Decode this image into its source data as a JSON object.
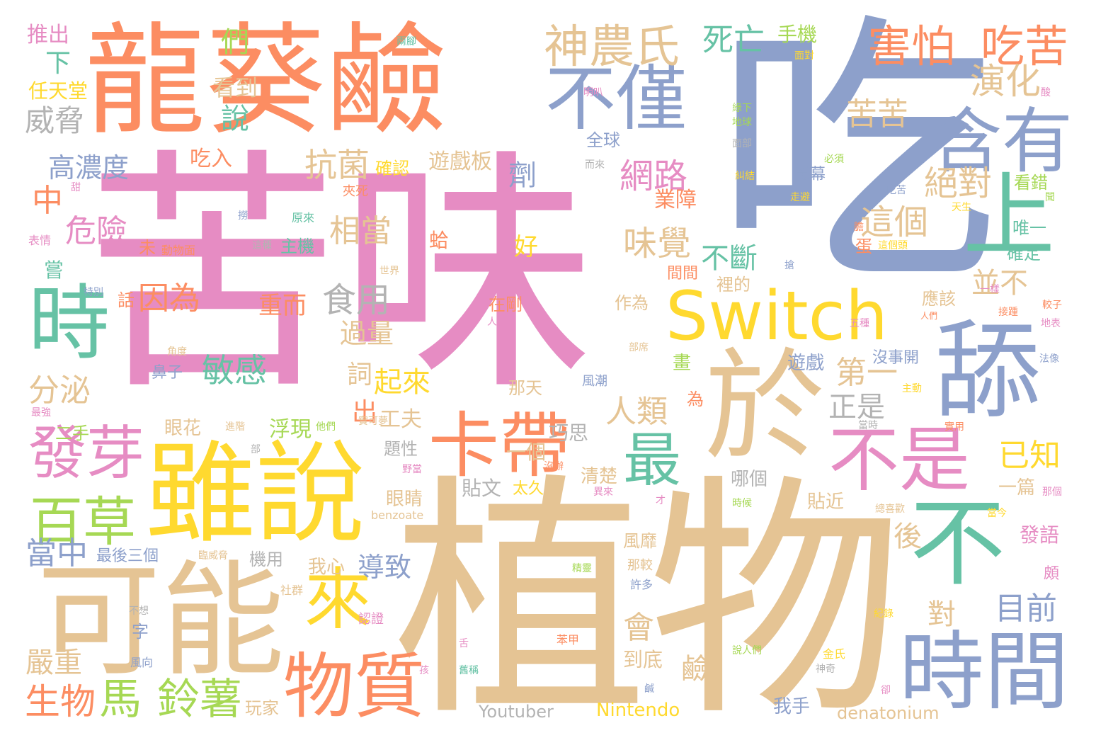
{
  "words": [
    "苦味",
    "吃",
    "植物",
    "龍葵鹼",
    "可能",
    "雖說",
    "於",
    "時間",
    "舔",
    "不是",
    "不",
    "卡帶",
    "Switch",
    "時",
    "物質",
    "不僅",
    "含有",
    "上",
    "來",
    "發芽",
    "百草",
    "最",
    "神農氏",
    "害怕",
    "吃苦",
    "鈴薯",
    "馬",
    "生物",
    "中",
    "演化",
    "苦苦",
    "這個",
    "絕對",
    "網路",
    "味覺",
    "抗菌",
    "相當",
    "危險",
    "高濃度",
    "威脅",
    "看到",
    "說",
    "們",
    "下",
    "任天堂",
    "推出",
    "死亡",
    "手機",
    "全球",
    "劑",
    "業障",
    "不斷",
    "並不",
    "第一",
    "敏感",
    "食用",
    "因為",
    "重而",
    "人類",
    "正是",
    "已知",
    "目前",
    "對",
    "後",
    "過量",
    "分泌",
    "二手",
    "起來",
    "詞",
    "出",
    "工夫",
    "浮現",
    "眼花",
    "一個",
    "巧思",
    "題性",
    "眼睛",
    "貼文",
    "太久",
    "清楚",
    "哪個",
    "一篇",
    "貼近",
    "風靡",
    "導致",
    "我心",
    "機用",
    "當中",
    "最後三個",
    "發語",
    "應該",
    "沒事開",
    "遊戲",
    "畫",
    "遊戲板",
    "確認",
    "會",
    "鹼",
    "到底",
    "我手",
    "Nintendo",
    "Youtuber",
    "denatonium",
    "benzoate",
    "嚴重",
    "玩家",
    "主機",
    "吃入",
    "蛤",
    "唯一",
    "確定",
    "看錯",
    "好",
    "蛋",
    "未",
    "嘗",
    "話",
    "在剛",
    "作為",
    "那天",
    "為",
    "裡的",
    "間間",
    "螢幕",
    "字",
    "風向",
    "認證",
    "金氏",
    "紀錄",
    "社群",
    "苯甲",
    "許多",
    "那較",
    "精靈",
    "兩腳",
    "面對",
    "綠下",
    "地球",
    "面部",
    "必須",
    "糾結",
    "吃苦",
    "天生",
    "走避",
    "明叭",
    "而來",
    "夾死",
    "原來",
    "動物面",
    "表情",
    "撈",
    "這個頭",
    "一樣",
    "人們",
    "接踵",
    "五種",
    "地表",
    "法像",
    "主動",
    "較子",
    "他們",
    "實可夢",
    "當時",
    "實用",
    "野當",
    "沒辦",
    "異來",
    "才",
    "那個",
    "當今",
    "總喜歡",
    "時候",
    "說人們",
    "神奇",
    "卻",
    "鹹",
    "舊稱",
    "舌",
    "孩",
    "不想",
    "臨威脅",
    "部",
    "進階",
    "最強",
    "特別",
    "世界",
    "角度",
    "部席",
    "人別",
    "甜",
    "搶",
    "鼻子",
    "風潮",
    "頗",
    "酸",
    "這種",
    "膽",
    "聞"
  ],
  "palette": [
    "#e68cc3",
    "#8da0cb",
    "#e5c494",
    "#fc8d62",
    "#ffd92f",
    "#a6d854",
    "#66c2a5",
    "#b3b3b3"
  ]
}
